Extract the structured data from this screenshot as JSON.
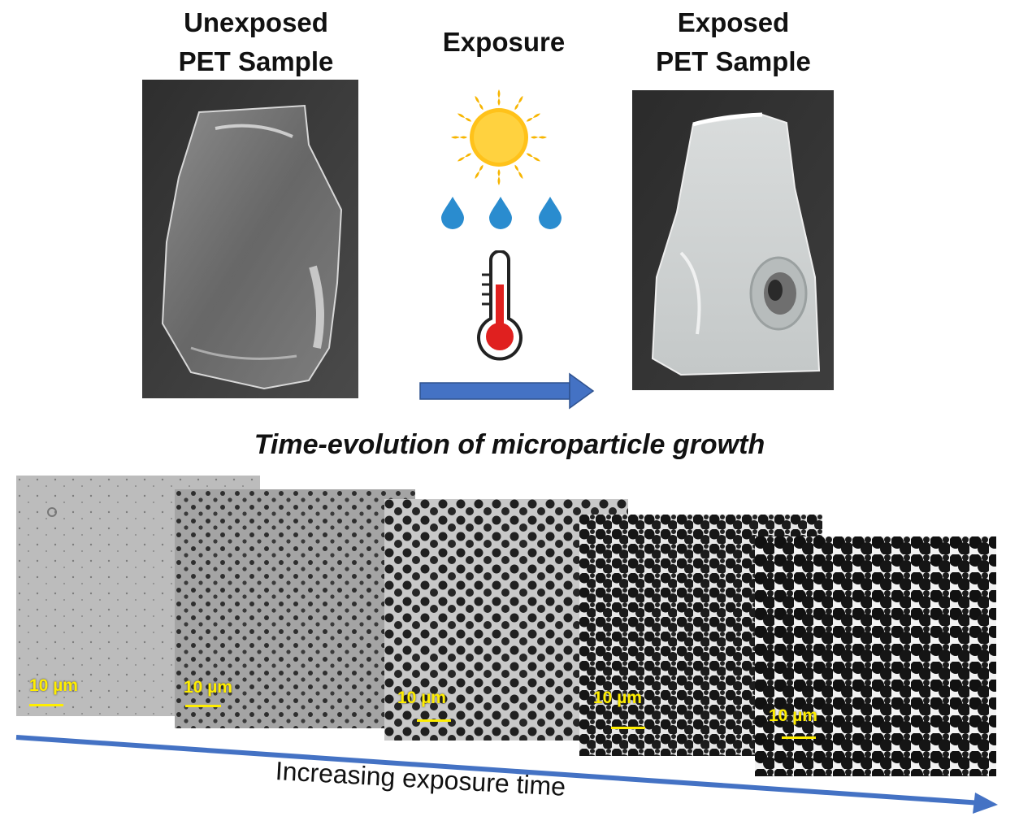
{
  "unexposed": {
    "title_line1": "Unexposed",
    "title_line2": "PET Sample"
  },
  "exposure": {
    "title": "Exposure"
  },
  "exposed": {
    "title_line1": "Exposed",
    "title_line2": "PET Sample"
  },
  "subtitle": "Time-evolution of microparticle growth",
  "micrographs": [
    {
      "scale_label": "10 µm"
    },
    {
      "scale_label": "10 µm"
    },
    {
      "scale_label": "10 µm"
    },
    {
      "scale_label": "10 µm"
    },
    {
      "scale_label": "10 µm"
    }
  ],
  "timeline_label": "Increasing exposure time",
  "colors": {
    "arrow": "#4472c4",
    "sun": "#f7b500",
    "droplet": "#2a8ccf",
    "thermometer_red": "#e0201f",
    "scale_label": "#ffee00"
  },
  "icons": [
    "sun-icon",
    "water-drop-icon",
    "thermometer-icon",
    "right-arrow-icon"
  ]
}
